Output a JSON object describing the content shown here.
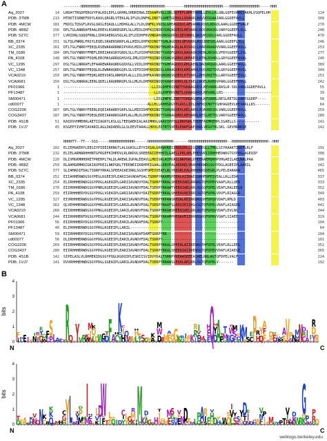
{
  "panels": {
    "a": "A",
    "b": "B"
  },
  "alignment_blocks": [
    {
      "ss": "--------HHHHHHHHH-----HHHHHH---HHHHHHHHHHHHHHHH---------HHHHHHHHHHHHHHHHHH---HHHHHHHHHHHHHH-----HHH",
      "rows": [
        {
          "name": "Aq_2027",
          "start": "14",
          "res": "LRDAYTRGDPERGVYFALKDLEPLLGKHRLSHDRIRWLIEDAAMVRLLSRLSDPEFLNPRTAKRLLEVLLRLGNLGQFEVAREIAKHLVSQPELHH",
          "end": "114"
        },
        {
          "name": "PDB: 3TM8",
          "start": "213",
          "res": "HTDKTISRNEFDDYLKAVLQRGRLVTEKLALIFLDLDNFKLINDTLGHETGDKVLLQVAQRLRAVVDSGAAIARLGGDEFAVLL",
          "end": "309"
        },
        {
          "name": "PDB: 4MCW",
          "start": "181",
          "res": "FKDILTQSGFLRVGLQASLEQAQLLLHDHGLALLYLDLDNFKLVNDSLGHEAGDQVLAEVARRLRSVLRDGDLAARLGGDEFVALP",
          "end": "270"
        },
        {
          "name": "PDB: 4R8Z",
          "start": "156",
          "res": "DPLTGLANRRAFEAALEREVLRSRREGRPLSLLMIDLDHFKQINDRYGHQAGDEVLREVARRLRDSVRASDLVARYGGEEFLVLL",
          "end": "248"
        },
        {
          "name": "PDB: 5Z7C",
          "start": "377",
          "res": "LVRIDRLSQQQFRNLLIDRSAERGVSQLALIFLDIDHFKVVNDAHGHASGDRVLQEVARRLQASVRSSDLVARLGGDEFAVLL",
          "end": "470"
        },
        {
          "name": "BB_0374",
          "start": "151",
          "res": "SLTQLPNRRLFRSYLEQELSRAERSRRPLALLMIDLDHFKDINDTYGHLAGDQVLQEVGRRLRSSIRESDLAARLGGEEFLVLL",
          "end": "246"
        },
        {
          "name": "XC_2335",
          "start": "161",
          "res": "DTLTGLFNRRYFEEQLRSEWARARRNRIPVAVLMIDLDFFKRINDTHGHPAGDLALRSVAQLLRARVRAADVVARLGGEEFAVLL",
          "end": "253"
        },
        {
          "name": "TM_0186",
          "start": "184",
          "res": "DPLTGVYNRRYFMEFLEREIAKASRYGRDLSLLFLDIDHFKRINDTYGHQFGDKVLRAVAQRIRENLRKSDLVFRYGGEEFLIVL",
          "end": "277"
        },
        {
          "name": "PA_4108",
          "start": "148",
          "res": "DPLTGLYNRRYFDQHLERCMASARRQGHSVGLIMLDIDFFKQINDSYGHGVGDRVLQHFAEVLRTNLRSHDLLGRYGGEEFAVAL",
          "end": "240"
        },
        {
          "name": "VC_1295",
          "start": "297",
          "res": "DSLTGLLNRRAFLEFAAREWARAQRDGQQVGLLVIDLDHFKRINDTYGHPAGDQVLRHLAERLQAQVRQGDLAARLGGEEFAVLL",
          "end": "389"
        },
        {
          "name": "VC_1348",
          "start": "257",
          "res": "DPLTGLFNRRYFEQQLDLEWNRAQRDGQPLSLVIFDIDHFKRINDSLGHAAGDEVLKMIAHHLRQSVRDTDVLGRYGGEEFAVIL",
          "end": "349"
        },
        {
          "name": "VCA0210",
          "start": "159",
          "res": "DPLTGLYNRRYFEQKLREEVSRSLRNHQPLALLLIDLDHFKAVNDQHGHQVGDEVLKTVAHLLRHSVRQTDLLARYGGEEFIVLL",
          "end": "251"
        },
        {
          "name": "VCA0681",
          "start": "150",
          "res": "DSLTGLKNRRALEERLQDELLRAQRNRQPLSLLMLDLDHFKRINDQYGHAEGDRVLQLTAELLRQELRAEDVPARLGGEEFVVLL",
          "end": "242"
        },
        {
          "name": "PF01966",
          "start": "1",
          "res": "-----------------------------------------LLIDLDHFKQINDTYGHAAGDEVLKEVARRLRASLR-SDLVARLGGDEFAVLL",
          "end": "55"
        },
        {
          "name": "PF13487",
          "start": "1",
          "res": "------------------------------------------LLDLDHFKRVNDTLGHAAGDAVLKEVARLLRS-----------------------",
          "end": "39"
        },
        {
          "name": "SM00471",
          "start": "1",
          "res": "------------------------------------------LIDLDNFKLINDTYGHQAGDEVLKEVARRLRESLRETDLVARYGGDEF----",
          "end": "58"
        },
        {
          "name": "cd00077",
          "start": "1",
          "res": "---------------------------------------ALLHLLRHHSDGYPLAVLLIDLDNFKQINDTYGHPAGDEVLKEVARLLKS-------",
          "end": "64"
        },
        {
          "name": "COG2206",
          "start": "167",
          "res": "DPLTGLYNRRYFEERLEQEIARARRYGRPLSLLMIDIDHFKRINDTYGHQAGDEVLRELARRLRQAVRDSDLVARLGGEEFAVLL",
          "end": "259"
        },
        {
          "name": "COG3437",
          "start": "187",
          "res": "DPLTGLYNRRYFDEQLEREIARARRSGRPLALLMLDLDHFKRINDTYGHAAGDRVLKEVARRLRESLRETDLVARYGGEEFAVLL",
          "end": "280"
        },
        {
          "name": "PDB: 4S1B",
          "start": "51",
          "res": "KAIDVVHMEHRLAETIIAGKYLKSLGLTEEQAEKIALAAIMHDLGKAVIPPSLLRKPGRLTDEEFAIMKEHPLIGAELLS-----------",
          "end": "141"
        },
        {
          "name": "PDB: 1VJ7",
          "start": "45",
          "res": "KSGEPYIVHPIAVARILAGLDADAERLGLSLEEVTAAALLHDVLEDTRTSVEELEARFGAEVARLVEGVTKLSKL-GEVHRRKSE",
          "end": "142"
        }
      ]
    },
    {
      "ss": "HHHHTT--TT---SSS-----HHHHHHHHHHHH------HHHHHHHHHHHH-------HHHHHHHHHHHHHHHHHH--HHHHHHHHHHHHHHHHH--HHH",
      "rows": [
        {
          "name": "Aq_2027",
          "start": "102",
          "res": "ELIEHGKERYLEEGIYPIEEIRRNGTLALGGKSLLEYVIRSALGRKWVKRIIRDQIRLLIGLHDEGLLTMGLSIYRAAKTIAEFLRLF",
          "end": "191"
        },
        {
          "name": "PDB: 3TM8",
          "start": "232",
          "res": "ELIELARMARHHHNTGFRGEFKIHPDVLRLRKDVLSREEEAIIEHHPILGAELLPRLAHLPHEVVRIIRHHHEDWDGTGYPDGLAGEQIP",
          "end": "308"
        },
        {
          "name": "PDB: 4MCW",
          "start": "220",
          "res": "DLIVMGKMHHDRETPREHPLTALDLAREWLIGPALEEAVLLHDIGKLAIPDAILNKPGKLDPEERAEMQRHPVHGAEILAELNALPAA",
          "end": "306"
        },
        {
          "name": "PDB: 4R8Z",
          "start": "259",
          "res": "RLAAMGRMHDIGKIAVPDEILNKPGRLTPEEWEIIKRHPEIGAALLRRVPALAEDAELVRAHHERWDGSGYPDGLAGEEIPLAARIL",
          "end": "342"
        },
        {
          "name": "PDB: 5Z7C",
          "start": "377",
          "res": "SLIAMADIFDALTSDRPYRKALSPEEAIAEIRRLSGSHFDPEVVEAFLRLYREGRLEALRHHHRRSDEGRLPLPELEARARA",
          "end": "465"
        },
        {
          "name": "BB_0374",
          "start": "252",
          "res": "EIIAHHERWDGSGYPEGLKGEEIPLEARIIAVADAFDALTSDRPYRKAMSPEEALAIIRAESGRHFDPEIVEALLRLLEDA",
          "end": "337"
        },
        {
          "name": "XC_2335",
          "start": "254",
          "res": "ELIRHHHERWDGSGYPDGLAGEAIPLGARIIAVADVYDALTSDRPYRRALSHEEAIAELRRNAGTQFDPEVVAAFLRLLQER",
          "end": "333"
        },
        {
          "name": "TM_0186",
          "start": "270",
          "res": "EIIRHHHERWDGSGYPNRLKGEEIPLGARIIAVADVFDALTSERPYRKAWTVEEAIAELRRCAGSQFDPELVEAFLRALEEGA",
          "end": "352"
        },
        {
          "name": "PA_4108",
          "start": "259",
          "res": "EIIRHHHERYDGSGYPDGLVGEAIPLGARIIAVADVYDAITSDRPYRKALSHEEAVAEIRRCSGTQFDPRLVDVFLRIAGGD",
          "end": "349"
        },
        {
          "name": "VC_1295",
          "start": "327",
          "res": "EIVRHHHERWDGSGYPDGLKGEEIPLEARIIAVADVFDALTSERPYKPAWSKEQALKEIRKNAGSHFDPQVVDAFLRMLD",
          "end": "403"
        },
        {
          "name": "VC_1348",
          "start": "362",
          "res": "QLVEHHHERWDGGGYPHRLRGEEIPLGARILAVADVFDALTSERPYRAAFSLERSIEIIHGGSGTQFDPELVRAFLAIAGEQ",
          "end": "441"
        },
        {
          "name": "VCA0210",
          "start": "260",
          "res": "EIIRHHHERWDGSGYPNGLKGEEIPLSARILAVADVFDALTSDRPYRKAWSHEEAIAELQRCAGTQFDPQVVDAFLEVLNQ",
          "end": "344"
        },
        {
          "name": "VCA0681",
          "start": "244",
          "res": "EIIRHHHERFDGSGYPEGLKGEEIPLEARIIAVADVYDALTSDRPYRKAMPHEQAVEIIRRNSGRQFDPRVVQAFLSIAEE",
          "end": "319"
        },
        {
          "name": "PF01966",
          "start": "56",
          "res": "EIIRHHHERYDGSGYPDGLKGEEIPLEARILAVADAFDALTSDRPY-------------------------------------",
          "end": "104"
        },
        {
          "name": "PF13487",
          "start": "40",
          "res": "ELIRHHHERWDGSGYPRGLKGEEIPLLARIL----------------------------------------------------",
          "end": "64"
        },
        {
          "name": "SM00471",
          "start": "59",
          "res": "EIIRHHHERYDGSGYPEGLKGEEIPLEARIIAVADAFDAMTSDRPYRK-----------------------------------",
          "end": "104"
        },
        {
          "name": "cd00077",
          "start": "56",
          "res": "DLIRHHHERWDGGGYPDGLKGEEIPLEARILAVADVFDALTSDRPY--------------------------------------",
          "end": "101"
        },
        {
          "name": "COG2206",
          "start": "269",
          "res": "EIIRHHHERWDGSGYPDGLKGEEIPLEARIIAVADVFDALTSDRPYRKALSPEEALAIIRENAGTHFDPELVEAFLRLLEEG",
          "end": "352"
        },
        {
          "name": "COG3437",
          "start": "280",
          "res": "EIIRHHHERWDGSGYPDGLKGEEIPLEARIIAVADVFDALTSDRPYRKALSHEEAIAIIRENSGTQFDPEVVDAFLRIAEGE",
          "end": "365"
        },
        {
          "name": "PDB: 4S1B",
          "start": "142",
          "res": "SIPELASLVLRHHERIDGSGYPQGLKGDQIPLESRIISVIDVYDALTSRRPYKEAWSEEEAIAELRRLAGTQFDPELVALF",
          "end": "224"
        },
        {
          "name": "PDB: 1VJ7",
          "start": "141",
          "res": "DVVRHHHEHWDGSGYPDGLSGEAIPLGARILAVADAFDALTSERPYRRAWSLEQALAELRRLSGTQFDPELV-------",
          "end": "192"
        }
      ]
    }
  ],
  "logos": [
    {
      "y_label": "bits",
      "y_ticks": [
        "0",
        "1",
        "2",
        "3",
        "4"
      ],
      "n_label": "N",
      "c_label": "C"
    },
    {
      "y_label": "bits",
      "y_ticks": [
        "0",
        "1",
        "2",
        "3",
        "4"
      ],
      "n_label": "N",
      "c_label": "C"
    }
  ],
  "credit": "weblogo.berkeley.edu",
  "colors": {
    "hydrophobic_yellow": "#f2f200",
    "green": "#22c322",
    "blue": "#1a3fcf",
    "red": "#d41b1b",
    "logo_orange": "#f0a020",
    "logo_blue": "#2040d0",
    "logo_green": "#20a020",
    "logo_red": "#d02020",
    "logo_purple": "#a020c0",
    "logo_black": "#000000"
  }
}
